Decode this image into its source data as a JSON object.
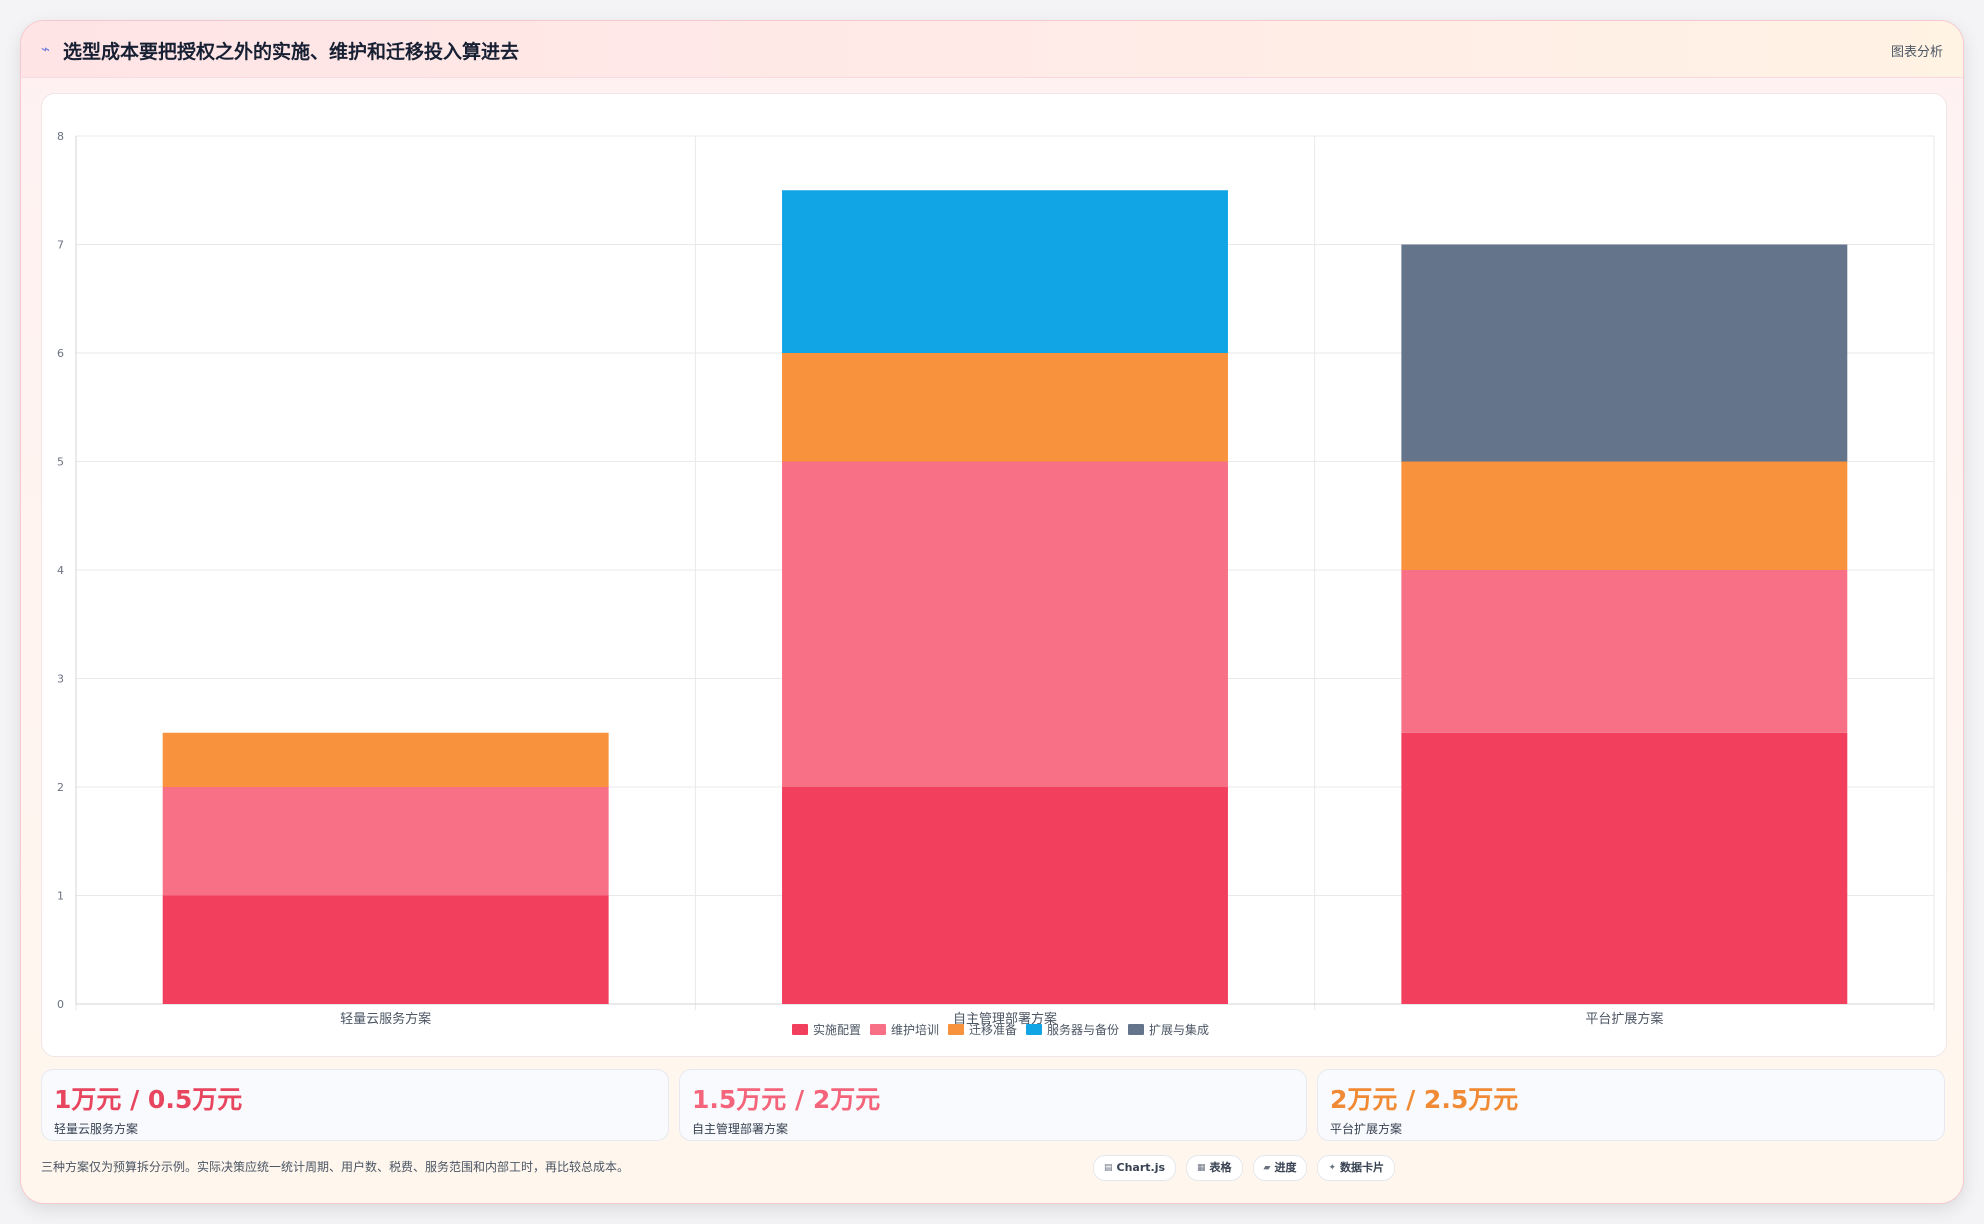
{
  "header": {
    "title": "选型成本要把授权之外的实施、维护和迁移投入算进去",
    "tag": "图表分析",
    "icon": "chart-line-icon"
  },
  "chart_data": {
    "type": "bar",
    "stacked": true,
    "categories": [
      "轻量云服务方案",
      "自主管理部署方案",
      "平台扩展方案"
    ],
    "ylim": [
      0,
      8
    ],
    "yticks": [
      0,
      1,
      2,
      3,
      4,
      5,
      6,
      7,
      8
    ],
    "grid": true,
    "legend_position": "bottom",
    "series": [
      {
        "name": "实施配置",
        "color": "#f23f5e",
        "values": [
          1,
          2,
          2.5
        ]
      },
      {
        "name": "维护培训",
        "color": "#f87085",
        "values": [
          1,
          3,
          1.5
        ]
      },
      {
        "name": "迁移准备",
        "color": "#f9923c",
        "values": [
          0.5,
          1,
          1
        ]
      },
      {
        "name": "服务器与备份",
        "color": "#12a5e6",
        "values": [
          0,
          1.5,
          0
        ]
      },
      {
        "name": "扩展与集成",
        "color": "#64748b",
        "values": [
          0,
          0,
          2
        ]
      }
    ]
  },
  "stats": [
    {
      "value": "1万元 / 0.5万元",
      "label": "轻量云服务方案",
      "color": "#e8465f"
    },
    {
      "value": "1.5万元 / 2万元",
      "label": "自主管理部署方案",
      "color": "#f4647a"
    },
    {
      "value": "2万元 / 2.5万元",
      "label": "平台扩展方案",
      "color": "#f08a35"
    }
  ],
  "footnote": "三种方案仅为预算拆分示例。实际决策应统一统计周期、用户数、税费、服务范围和内部工时，再比较总成本。",
  "chips": [
    {
      "label": "Chart.js",
      "icon": "chart-icon"
    },
    {
      "label": "表格",
      "icon": "table-icon"
    },
    {
      "label": "进度",
      "icon": "progress-icon"
    },
    {
      "label": "数据卡片",
      "icon": "sparkle-icon"
    }
  ]
}
